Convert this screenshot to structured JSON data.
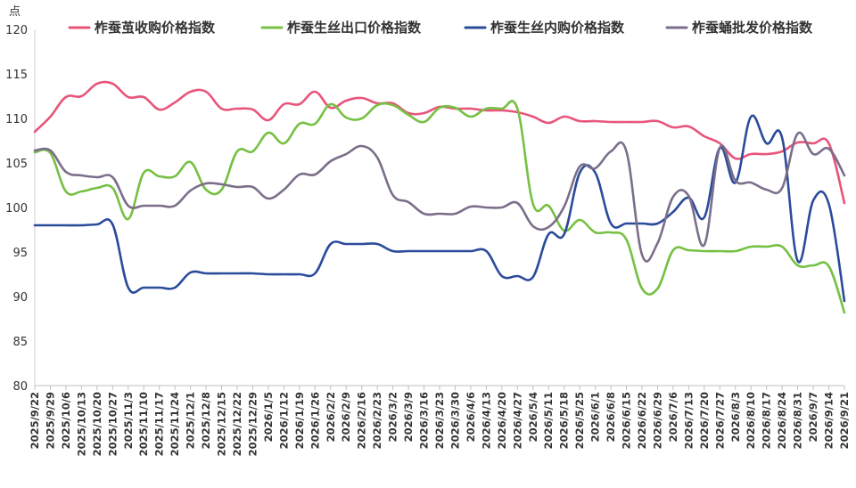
{
  "chart_data": {
    "type": "line",
    "unit": "点",
    "ylim": [
      80,
      120
    ],
    "yticks": [
      80,
      85,
      90,
      95,
      100,
      105,
      110,
      115,
      120
    ],
    "grid": false,
    "legend_position": "top",
    "x": [
      "2025/9/22",
      "2025/9/29",
      "2025/10/6",
      "2025/10/13",
      "2025/10/20",
      "2025/10/27",
      "2025/11/3",
      "2025/11/10",
      "2025/11/17",
      "2025/11/24",
      "2025/12/1",
      "2025/12/8",
      "2025/12/15",
      "2025/12/22",
      "2025/12/29",
      "2026/1/5",
      "2026/1/12",
      "2026/1/19",
      "2026/1/26",
      "2026/2/2",
      "2026/2/9",
      "2026/2/16",
      "2026/2/23",
      "2026/3/2",
      "2026/3/9",
      "2026/3/16",
      "2026/3/23",
      "2026/3/30",
      "2026/4/6",
      "2026/4/13",
      "2026/4/20",
      "2026/4/27",
      "2026/5/4",
      "2026/5/11",
      "2026/5/18",
      "2026/5/25",
      "2026/6/1",
      "2026/6/8",
      "2026/6/15",
      "2026/6/22",
      "2026/6/29",
      "2026/7/6",
      "2026/7/13",
      "2026/7/20",
      "2026/7/27",
      "2026/8/3",
      "2026/8/10",
      "2026/8/17",
      "2026/8/24",
      "2026/8/31",
      "2026/9/7",
      "2026/9/14",
      "2026/9/21"
    ],
    "series": [
      {
        "name": "柞蚕茧收购价格指数",
        "color": "#e8557a",
        "values": [
          108.5,
          110.2,
          112.4,
          112.5,
          113.9,
          113.9,
          112.4,
          112.4,
          111.0,
          111.8,
          113.0,
          113.0,
          111.1,
          111.1,
          111.0,
          109.8,
          111.6,
          111.6,
          113.0,
          111.2,
          112.0,
          112.3,
          111.7,
          111.7,
          110.6,
          110.6,
          111.3,
          111.1,
          111.1,
          110.9,
          110.9,
          110.7,
          110.2,
          109.5,
          110.2,
          109.7,
          109.7,
          109.6,
          109.6,
          109.6,
          109.7,
          109.0,
          109.1,
          108.0,
          107.2,
          105.5,
          106.0,
          106.0,
          106.3,
          107.3,
          107.2,
          107.2,
          100.5
        ]
      },
      {
        "name": "柞蚕生丝出口价格指数",
        "color": "#76c043",
        "values": [
          106.2,
          106.1,
          101.8,
          101.8,
          102.2,
          102.2,
          98.7,
          103.9,
          103.5,
          103.5,
          105.1,
          102.0,
          102.0,
          106.3,
          106.3,
          108.4,
          107.2,
          109.4,
          109.4,
          111.6,
          110.1,
          110.0,
          111.5,
          111.5,
          110.4,
          109.6,
          111.2,
          111.2,
          110.2,
          111.1,
          111.1,
          111.1,
          100.4,
          100.2,
          97.4,
          98.6,
          97.2,
          97.2,
          96.4,
          90.9,
          90.9,
          95.2,
          95.2,
          95.1,
          95.1,
          95.1,
          95.6,
          95.6,
          95.6,
          93.5,
          93.5,
          93.4,
          88.2
        ]
      },
      {
        "name": "柞蚕生丝内购价格指数",
        "color": "#2b4b9b",
        "values": [
          98.0,
          98.0,
          98.0,
          98.0,
          98.1,
          98.1,
          91.0,
          91.0,
          91.0,
          91.0,
          92.7,
          92.6,
          92.6,
          92.6,
          92.6,
          92.5,
          92.5,
          92.5,
          92.6,
          95.9,
          95.9,
          95.9,
          95.9,
          95.1,
          95.1,
          95.1,
          95.1,
          95.1,
          95.1,
          95.1,
          92.3,
          92.3,
          92.2,
          97.0,
          97.0,
          103.9,
          103.9,
          98.2,
          98.2,
          98.2,
          98.2,
          99.5,
          101.1,
          98.9,
          106.7,
          102.8,
          110.2,
          107.2,
          107.8,
          94.0,
          100.8,
          100.4,
          89.5
        ]
      },
      {
        "name": "柞蚕蛹批发价格指数",
        "color": "#7b6e8a",
        "values": [
          106.4,
          106.4,
          104.0,
          103.6,
          103.4,
          103.4,
          100.2,
          100.2,
          100.2,
          100.2,
          101.9,
          102.7,
          102.6,
          102.3,
          102.3,
          101.0,
          102.0,
          103.7,
          103.7,
          105.2,
          106.0,
          106.9,
          105.6,
          101.4,
          100.6,
          99.3,
          99.3,
          99.3,
          100.1,
          100.0,
          100.0,
          100.5,
          97.9,
          97.8,
          100.1,
          104.6,
          104.4,
          106.3,
          106.3,
          94.7,
          96.0,
          101.2,
          101.3,
          95.8,
          106.7,
          103.0,
          102.8,
          102.0,
          102.2,
          108.3,
          106.0,
          106.6,
          103.6
        ]
      }
    ]
  }
}
